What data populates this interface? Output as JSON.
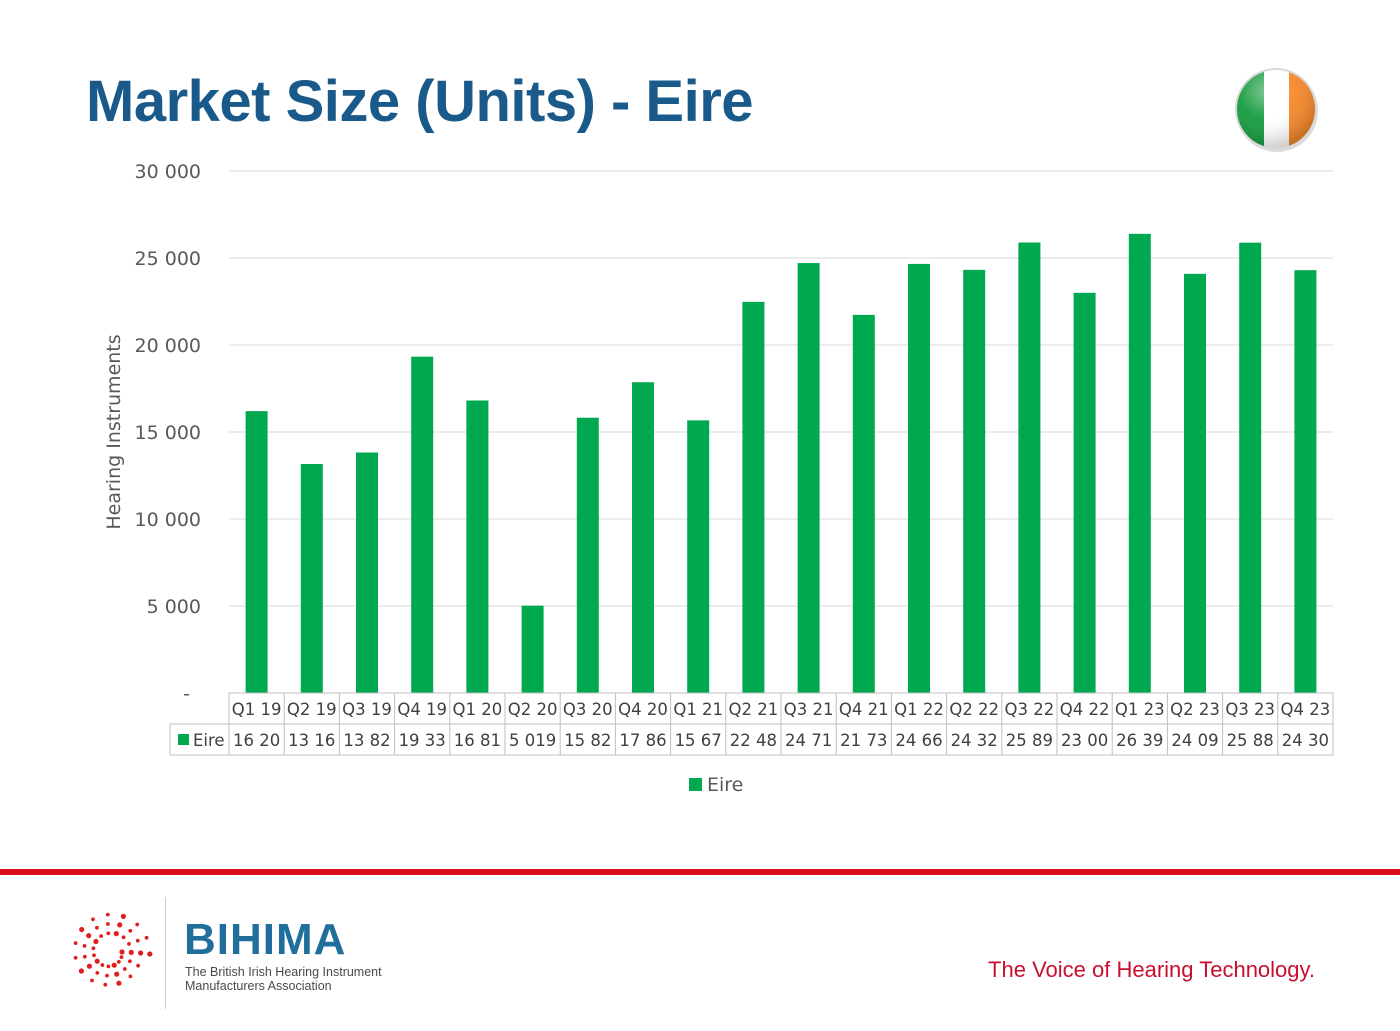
{
  "slide": {
    "title": "Market Size (Units) - Eire",
    "tagline": "The Voice of Hearing Technology.",
    "logo": {
      "name": "BIHIMA",
      "subtitle_line1": "The British Irish Hearing Instrument",
      "subtitle_line2": "Manufacturers Association"
    },
    "flag_icon": "ireland-flag-icon",
    "colors": {
      "title": "#1a5a8a",
      "bar": "#00a84f",
      "accent_red": "#d8101e",
      "brand": "#1f6e9c"
    }
  },
  "chart_data": {
    "type": "bar",
    "ylabel": "Hearing Instruments",
    "ylim": [
      0,
      30000
    ],
    "yticks": [
      0,
      5000,
      10000,
      15000,
      20000,
      25000,
      30000
    ],
    "ytick_labels": [
      "-",
      "5 000",
      "10 000",
      "15 000",
      "20 000",
      "25 000",
      "30 000"
    ],
    "grid": true,
    "legend_position": "bottom",
    "categories": [
      "Q1 19",
      "Q2 19",
      "Q3 19",
      "Q4 19",
      "Q1 20",
      "Q2 20",
      "Q3 20",
      "Q4 20",
      "Q1 21",
      "Q2 21",
      "Q3 21",
      "Q4 21",
      "Q1 22",
      "Q2 22",
      "Q3 22",
      "Q4 22",
      "Q1 23",
      "Q2 23",
      "Q3 23",
      "Q4 23"
    ],
    "series": [
      {
        "name": "Eire",
        "color": "#00a84f",
        "values": [
          16200,
          13160,
          13820,
          19330,
          16810,
          5019,
          15820,
          17860,
          15670,
          22480,
          24710,
          21730,
          24660,
          24320,
          25890,
          23000,
          26390,
          24090,
          25880,
          24300
        ],
        "table_labels": [
          "16 20",
          "13 16",
          "13 82",
          "19 33",
          "16 81",
          "5 019",
          "15 82",
          "17 86",
          "15 67",
          "22 48",
          "24 71",
          "21 73",
          "24 66",
          "24 32",
          "25 89",
          "23 00",
          "26 39",
          "24 09",
          "25 88",
          "24 30"
        ]
      }
    ]
  }
}
